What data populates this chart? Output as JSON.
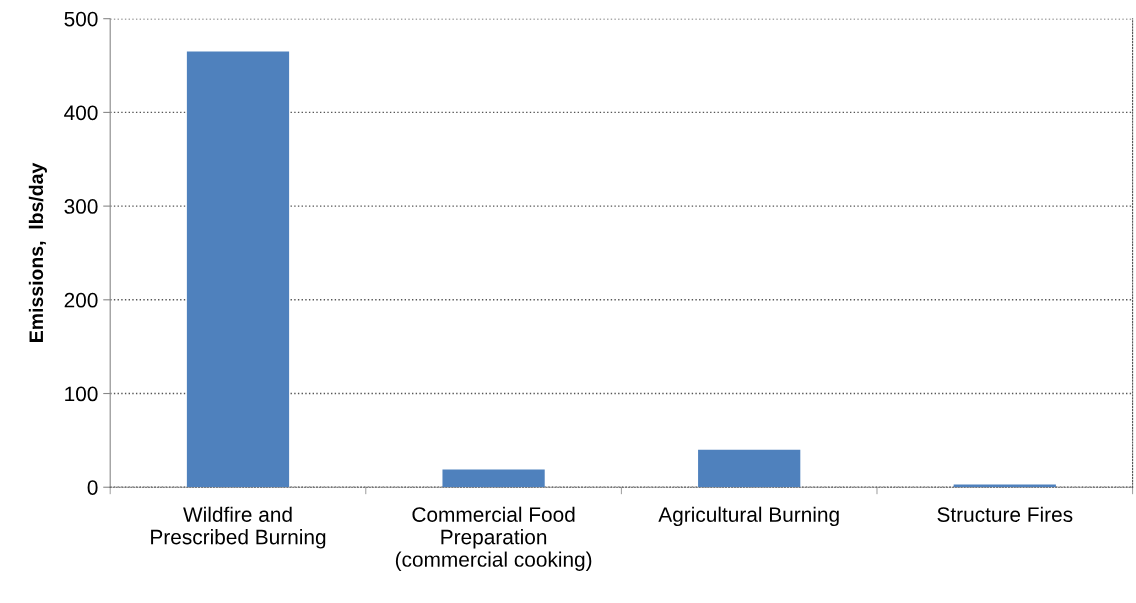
{
  "chart_data": {
    "type": "bar",
    "ylabel": "Emissions,  lbs/day",
    "categories": [
      "Wildfire and\nPrescribed Burning",
      "Commercial Food\nPreparation\n(commercial cooking)",
      "Agricultural Burning",
      "Structure Fires"
    ],
    "values": [
      465,
      19,
      40,
      3
    ],
    "color": "#4f81bd",
    "ylim": [
      0,
      500
    ],
    "yticks": [
      0,
      100,
      200,
      300,
      400,
      500
    ],
    "grid": "y"
  }
}
